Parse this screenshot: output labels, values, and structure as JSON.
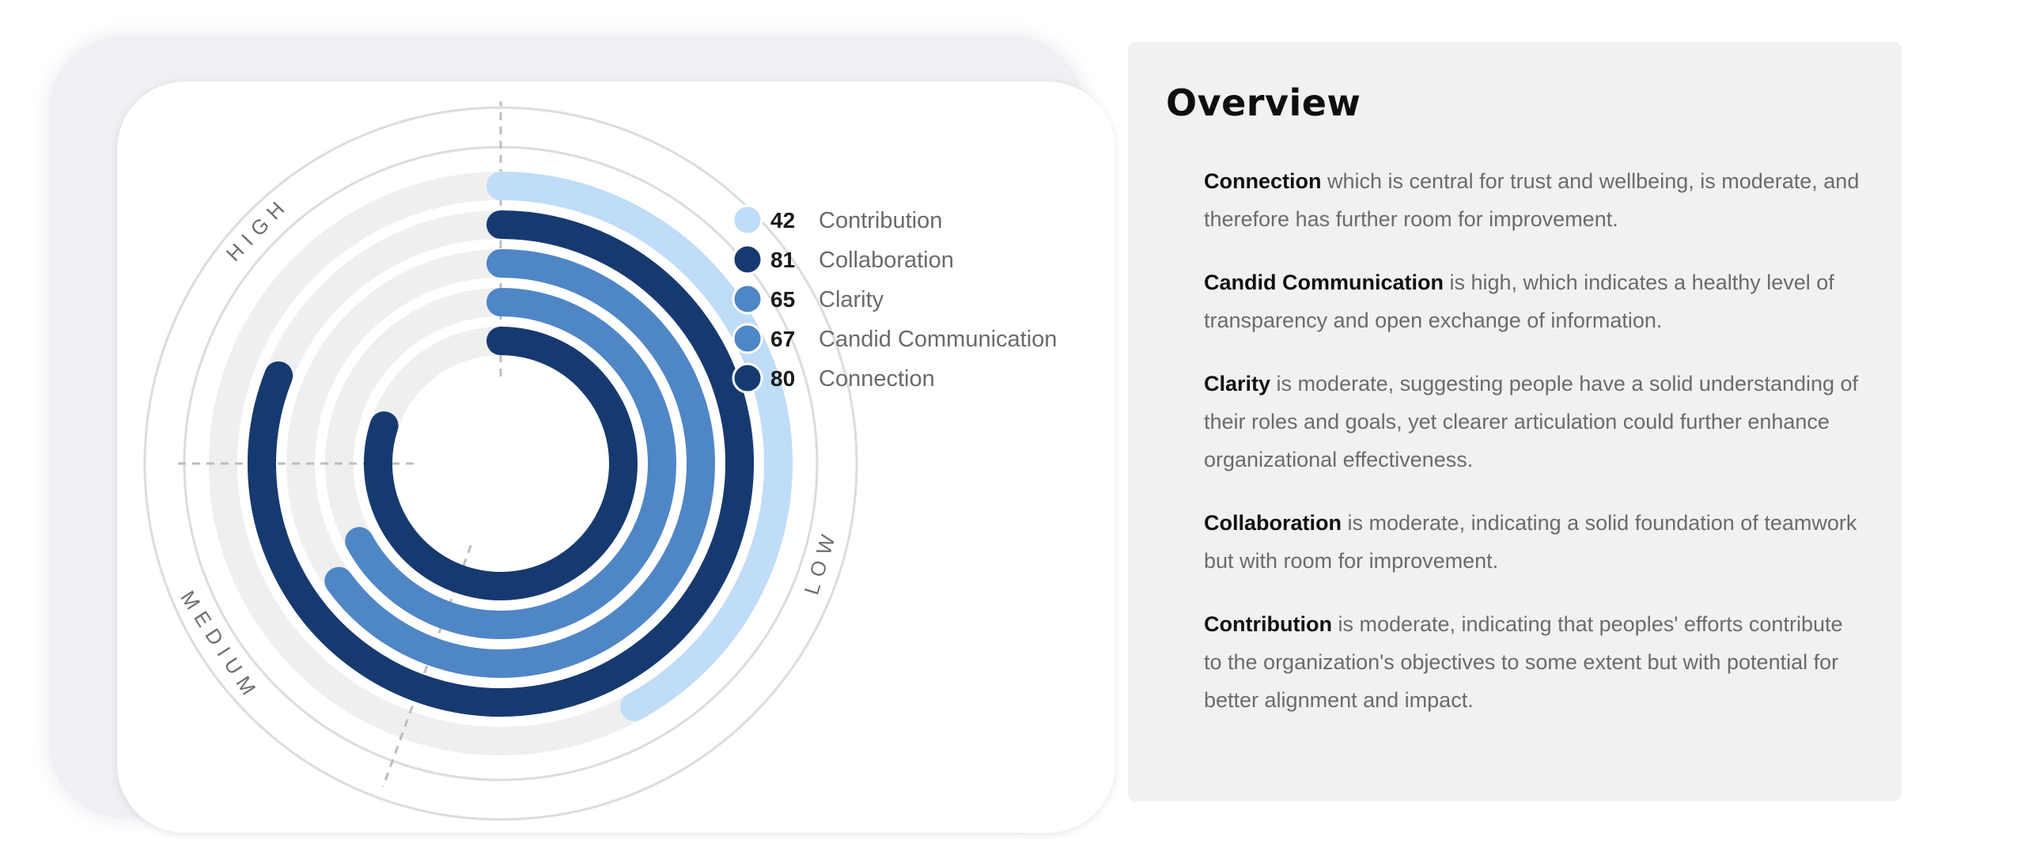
{
  "chart_data": {
    "type": "radial-bar",
    "max": 100,
    "series": [
      {
        "name": "Contribution",
        "value": 42,
        "color": "#bfdcf8"
      },
      {
        "name": "Collaboration",
        "value": 81,
        "color": "#163a70"
      },
      {
        "name": "Clarity",
        "value": 65,
        "color": "#4f86c6"
      },
      {
        "name": "Candid Communication",
        "value": 67,
        "color": "#4f86c6"
      },
      {
        "name": "Connection",
        "value": 80,
        "color": "#163a70"
      }
    ],
    "zones": [
      "HIGH",
      "LOW",
      "MEDIUM"
    ]
  },
  "overview": {
    "title": "Overview",
    "items": [
      {
        "term": "Connection",
        "text": " which is central for trust and wellbeing, is moderate, and therefore has further room for improvement."
      },
      {
        "term": "Candid Communication",
        "text": " is high, which indicates a healthy level of transparency and open exchange of information."
      },
      {
        "term": "Clarity",
        "text": " is moderate, suggesting people have a solid understanding of their roles and goals, yet clearer articulation could further enhance organizational effectiveness."
      },
      {
        "term": "Collaboration",
        "text": " is moderate, indicating a solid foundation of teamwork but with room for improvement."
      },
      {
        "term": "Contribution",
        "text": " is moderate, indicating that peoples' efforts contribute to the organization's objectives to some extent but with potential for better alignment and impact."
      }
    ]
  }
}
